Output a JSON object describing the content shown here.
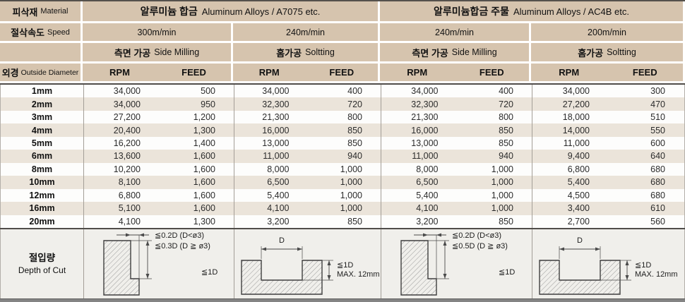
{
  "header": {
    "row1": {
      "label_ko": "피삭재",
      "label_en": "Material",
      "mat1_ko": "알루미늄 합금",
      "mat1_en": "Aluminum Alloys / A7075 etc.",
      "mat2_ko": "알루미늄합금 주물",
      "mat2_en": "Aluminum Alloys / AC4B etc."
    },
    "row2": {
      "label_ko": "절삭속도",
      "label_en": "Speed",
      "speeds": [
        "300m/min",
        "240m/min",
        "240m/min",
        "200m/min"
      ]
    },
    "row3": {
      "procs": [
        {
          "ko": "측면 가공",
          "en": "Side Milling"
        },
        {
          "ko": "홈가공",
          "en": "Soltting"
        },
        {
          "ko": "측면 가공",
          "en": "Side Milling"
        },
        {
          "ko": "홈가공",
          "en": "Soltting"
        }
      ]
    },
    "row4": {
      "label_ko": "외경",
      "label_en": "Outside Diameter",
      "cols": [
        "RPM",
        "FEED",
        "RPM",
        "FEED",
        "RPM",
        "FEED",
        "RPM",
        "FEED"
      ]
    }
  },
  "body": {
    "rows": [
      {
        "dia": "1mm",
        "values": [
          "34,000",
          "500",
          "34,000",
          "400",
          "34,000",
          "400",
          "34,000",
          "300"
        ]
      },
      {
        "dia": "2mm",
        "values": [
          "34,000",
          "950",
          "32,300",
          "720",
          "32,300",
          "720",
          "27,200",
          "470"
        ]
      },
      {
        "dia": "3mm",
        "values": [
          "27,200",
          "1,200",
          "21,300",
          "800",
          "21,300",
          "800",
          "18,000",
          "510"
        ]
      },
      {
        "dia": "4mm",
        "values": [
          "20,400",
          "1,300",
          "16,000",
          "850",
          "16,000",
          "850",
          "14,000",
          "550"
        ]
      },
      {
        "dia": "5mm",
        "values": [
          "16,200",
          "1,400",
          "13,000",
          "850",
          "13,000",
          "850",
          "11,000",
          "600"
        ]
      },
      {
        "dia": "6mm",
        "values": [
          "13,600",
          "1,600",
          "11,000",
          "940",
          "11,000",
          "940",
          "9,400",
          "640"
        ]
      },
      {
        "dia": "8mm",
        "values": [
          "10,200",
          "1,600",
          "8,000",
          "1,000",
          "8,000",
          "1,000",
          "6,800",
          "680"
        ]
      },
      {
        "dia": "10mm",
        "values": [
          "8,100",
          "1,600",
          "6,500",
          "1,000",
          "6,500",
          "1,000",
          "5,400",
          "680"
        ]
      },
      {
        "dia": "12mm",
        "values": [
          "6,800",
          "1,600",
          "5,400",
          "1,000",
          "5,400",
          "1,000",
          "4,500",
          "680"
        ]
      },
      {
        "dia": "16mm",
        "values": [
          "5,100",
          "1,600",
          "4,100",
          "1,000",
          "4,100",
          "1,000",
          "3,400",
          "610"
        ]
      },
      {
        "dia": "20mm",
        "values": [
          "4,100",
          "1,300",
          "3,200",
          "850",
          "3,200",
          "850",
          "2,700",
          "560"
        ]
      }
    ]
  },
  "depth": {
    "label_ko": "절입량",
    "label_en": "Depth of Cut",
    "d1": {
      "line1": "≦0.2D (D<ø3)",
      "line2": "≦0.3D (D ≧ ø3)",
      "depth": "≦1D"
    },
    "d2": {
      "width": "D",
      "depth": "≦1D",
      "max": "MAX. 12mm"
    },
    "d3": {
      "line1": "≦0.2D (D<ø3)",
      "line2": "≦0.5D (D ≧ ø3)",
      "depth": "≦1D"
    },
    "d4": {
      "width": "D",
      "depth": "≦1D",
      "max": "MAX. 12mm"
    }
  },
  "colors": {
    "header_tan": "#d6c4ae",
    "row_alt": "#ebe4da",
    "depth_bg": "#f0efeb",
    "divider": "#4f4c49"
  }
}
